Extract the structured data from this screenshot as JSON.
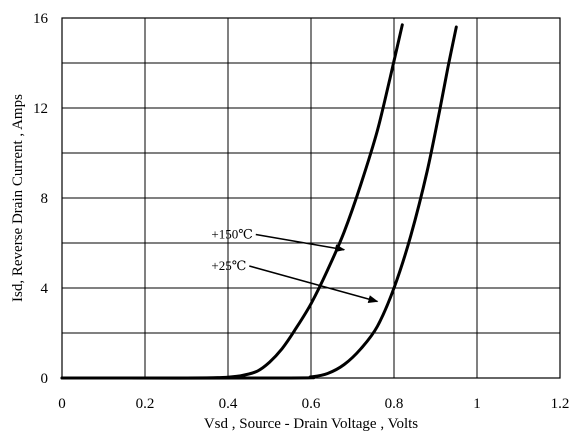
{
  "chart_data": {
    "type": "line",
    "title": "",
    "xlabel": "Vsd , Source - Drain Voltage , Volts",
    "ylabel": "Isd, Reverse Drain Current , Amps",
    "xlim": [
      0,
      1.2
    ],
    "ylim": [
      0,
      16
    ],
    "x_ticks": [
      0,
      0.2,
      0.4,
      0.6,
      0.8,
      1.0,
      1.2
    ],
    "x_tick_labels": [
      "0",
      "0.2",
      "0.4",
      "0.6",
      "0.8",
      "1",
      "1.2"
    ],
    "y_ticks": [
      0,
      4,
      8,
      12,
      16
    ],
    "y_tick_labels": [
      "0",
      "4",
      "8",
      "12",
      "16"
    ],
    "x_gridlines": [
      0.2,
      0.4,
      0.6,
      0.8,
      1.0
    ],
    "y_gridlines": [
      2,
      4,
      6,
      8,
      10,
      12,
      14
    ],
    "grid": true,
    "series": [
      {
        "name": "+150℃",
        "points": [
          [
            0,
            0
          ],
          [
            0.3,
            0
          ],
          [
            0.38,
            0.02
          ],
          [
            0.43,
            0.1
          ],
          [
            0.47,
            0.3
          ],
          [
            0.5,
            0.7
          ],
          [
            0.53,
            1.3
          ],
          [
            0.56,
            2.1
          ],
          [
            0.6,
            3.3
          ],
          [
            0.64,
            4.8
          ],
          [
            0.68,
            6.5
          ],
          [
            0.72,
            8.6
          ],
          [
            0.76,
            11.0
          ],
          [
            0.79,
            13.3
          ],
          [
            0.82,
            15.7
          ]
        ]
      },
      {
        "name": "+25℃",
        "points": [
          [
            0,
            0
          ],
          [
            0.55,
            0
          ],
          [
            0.6,
            0.05
          ],
          [
            0.64,
            0.2
          ],
          [
            0.68,
            0.6
          ],
          [
            0.72,
            1.3
          ],
          [
            0.76,
            2.3
          ],
          [
            0.8,
            4.0
          ],
          [
            0.84,
            6.3
          ],
          [
            0.88,
            9.2
          ],
          [
            0.91,
            11.9
          ],
          [
            0.93,
            13.8
          ],
          [
            0.95,
            15.6
          ]
        ]
      }
    ],
    "annotations": [
      {
        "text": "+150℃",
        "label_at": [
          0.36,
          6.2
        ],
        "arrow_to": [
          0.68,
          5.7
        ]
      },
      {
        "text": "+25℃",
        "label_at": [
          0.36,
          4.8
        ],
        "arrow_to": [
          0.76,
          3.4
        ]
      }
    ]
  }
}
